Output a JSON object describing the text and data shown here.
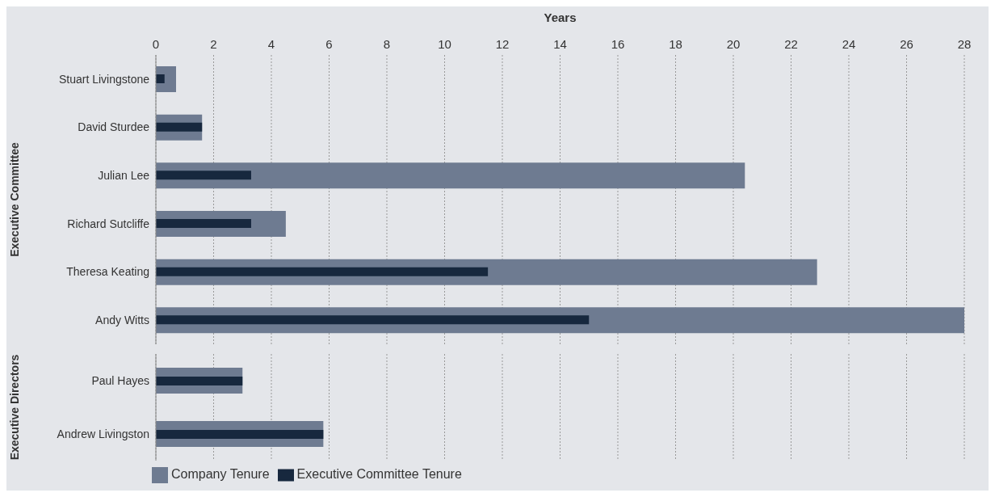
{
  "chart_data": [
    {
      "type": "bar",
      "orientation": "horizontal",
      "xlabel": "Years",
      "ylabel": "Executive Committee",
      "categories": [
        "Stuart Livingstone",
        "David Sturdee",
        "Julian Lee",
        "Richard Sutcliffe",
        "Theresa Keating",
        "Andy Witts"
      ],
      "series": [
        {
          "color": "#6e7b91",
          "values": [
            0.7,
            1.6,
            20.4,
            4.5,
            22.9,
            28
          ]
        },
        {
          "color": "#17283e",
          "values": [
            0.3,
            1.6,
            3.3,
            3.3,
            11.5,
            15
          ]
        }
      ],
      "xlim": [
        0,
        28
      ],
      "xticks": [
        0,
        2,
        4,
        6,
        8,
        10,
        12,
        14,
        16,
        18,
        20,
        22,
        24,
        26,
        28
      ],
      "grid": "x"
    },
    {
      "type": "bar",
      "orientation": "horizontal",
      "ylabel": "Executive Directors",
      "categories": [
        "Paul Hayes",
        "Andrew Livingston"
      ],
      "series": [
        {
          "name": "Company Tenure",
          "color": "#6e7b91",
          "values": [
            3,
            5.8
          ]
        },
        {
          "name": "Executive Committee Tenure",
          "color": "#17283e",
          "values": [
            3,
            5.8
          ]
        }
      ],
      "xlim": [
        0,
        28
      ],
      "xticks": [
        0,
        2,
        4,
        6,
        8,
        10,
        12,
        14,
        16,
        18,
        20,
        22,
        24,
        26,
        28
      ],
      "grid": "x",
      "tick_labels": "y",
      "legend": "bottom"
    }
  ]
}
